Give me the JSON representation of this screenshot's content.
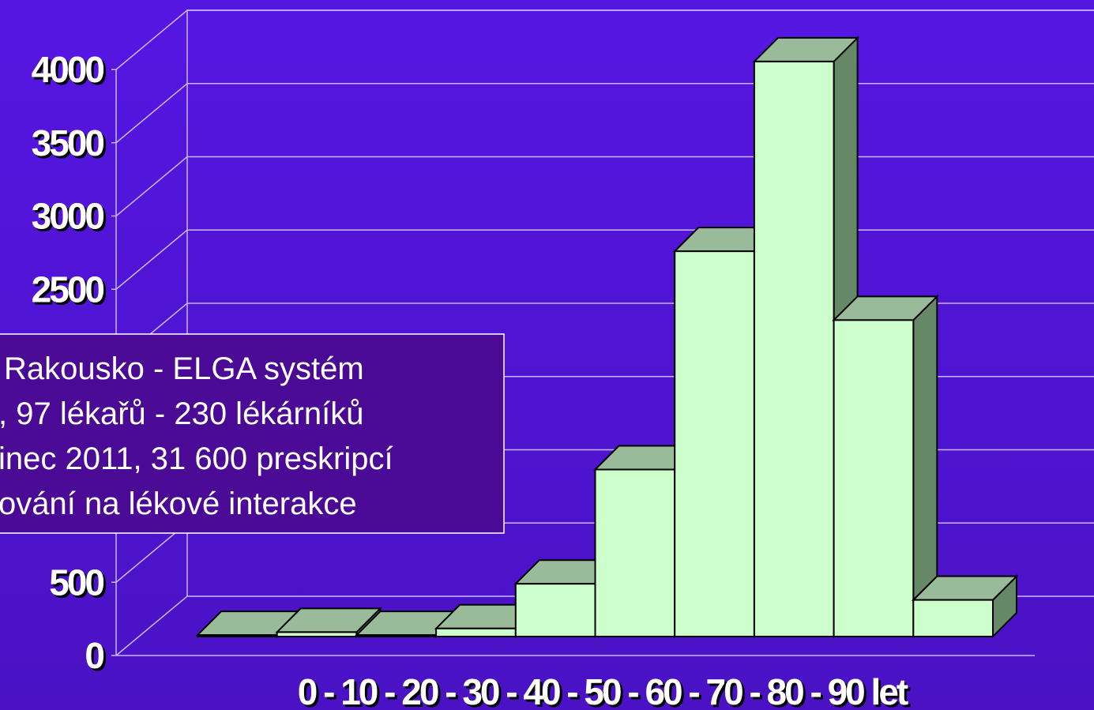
{
  "chart_data": {
    "type": "bar3d",
    "x_label": "0 - 10 - 20 - 30 - 40 - 50 - 60 - 70 - 80 - 90 let",
    "categories": [
      null,
      null,
      null,
      null,
      null,
      null,
      null,
      null,
      null,
      null
    ],
    "values": [
      10,
      30,
      10,
      55,
      360,
      1140,
      2630,
      3925,
      2160,
      250
    ],
    "color": "#ccffcc",
    "top_color": "#99bb99",
    "side_color": "#668866",
    "ylim": [
      0,
      4000
    ],
    "yticks": [
      0,
      500,
      1000,
      1500,
      2000,
      2500,
      3000,
      3500,
      4000
    ],
    "grid": true,
    "annotation": [
      "Rakousko - ELGA systém",
      ", 97 lékařů - 230 lékárníků",
      "inec 2011, 31 600 preskripcí",
      "ování na lékové interakce"
    ]
  }
}
